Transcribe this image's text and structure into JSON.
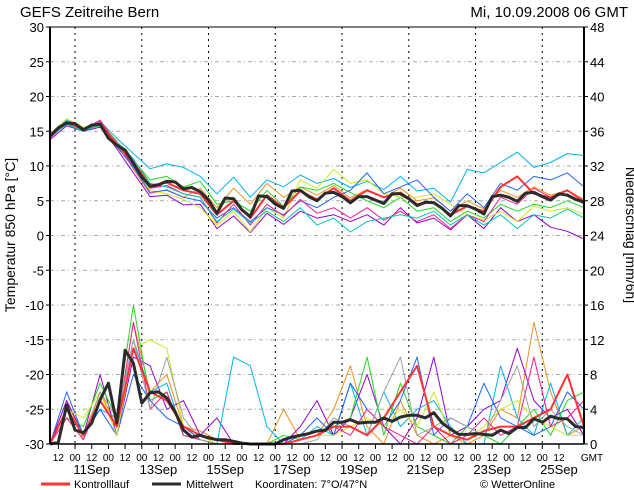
{
  "header": {
    "title": "GEFS Zeitreihe Bern",
    "run": "Mi, 10.09.2008 06 GMT"
  },
  "legend": {
    "control": "Kontrolllauf",
    "mean": "Mittelwert",
    "coords": "Koordinaten: 7°O/47°N",
    "credit": "© WetterOnline"
  },
  "colors": {
    "control": "#ff3333",
    "mean": "#2b2b2b",
    "members": [
      "#00b4f0",
      "#9400d3",
      "#f0901e",
      "#1edc1e",
      "#d2e61e",
      "#1e64ff",
      "#f01e8c",
      "#00c8b4"
    ],
    "precip_members": [
      "#f0901e",
      "#9400d3",
      "#00b4f0",
      "#1edc1e",
      "#1e64ff",
      "#d2e61e",
      "#f01e8c",
      "#a0a0a0"
    ]
  },
  "chart_data": {
    "type": "line",
    "title": "GEFS Zeitreihe Bern",
    "start": "10.09.2008 06 GMT",
    "hours_span": 384,
    "x_tick_labels": [
      "12",
      "00",
      "12",
      "00",
      "12",
      "00",
      "12",
      "00",
      "12",
      "00",
      "12",
      "00",
      "12",
      "00",
      "12",
      "00",
      "12",
      "00",
      "12",
      "00",
      "12",
      "00",
      "12",
      "00",
      "12",
      "00",
      "12",
      "00",
      "12",
      "00",
      "12"
    ],
    "x_unit_label": "GMT",
    "date_labels": [
      "11Sep",
      "13Sep",
      "15Sep",
      "17Sep",
      "19Sep",
      "21Sep",
      "23Sep",
      "25Sep"
    ],
    "left_axis": {
      "label": "Temperatur 850 hPa [°C]",
      "range": [
        -30,
        30
      ],
      "ticks": [
        "-30",
        "-25",
        "-20",
        "-15",
        "-10",
        "-5",
        "0",
        "5",
        "10",
        "15",
        "20",
        "25",
        "30"
      ]
    },
    "right_axis": {
      "label": "Niederschlag [mm/6h]",
      "range": [
        0,
        48
      ],
      "ticks": [
        "0",
        "4",
        "8",
        "12",
        "16",
        "20",
        "24",
        "28",
        "32",
        "36",
        "40",
        "44",
        "48"
      ]
    },
    "grid": true,
    "temperature": {
      "mean": {
        "step_hours": 6,
        "values": [
          14.3,
          15.5,
          16.2,
          16.1,
          15.2,
          15.9,
          16.0,
          14.0,
          13.0,
          12.3,
          10.4,
          8.4,
          7.1,
          7.3,
          7.8,
          7.7,
          6.7,
          6.9,
          6.3,
          5.1,
          3.2,
          5.4,
          5.3,
          3.7,
          2.7,
          5.7,
          5.6,
          4.5,
          3.9,
          6.4,
          6.5,
          5.6,
          5.0,
          6.1,
          6.2,
          5.6,
          4.7,
          5.6,
          5.6,
          5.1,
          4.6,
          6.0,
          6.0,
          5.3,
          4.3,
          4.8,
          4.7,
          3.9,
          2.8,
          4.3,
          4.3,
          3.8,
          3.1,
          5.6,
          5.8,
          5.5,
          4.9,
          6.1,
          6.2,
          5.6,
          5.1,
          6.0,
          5.8,
          5.2,
          4.8
        ]
      },
      "control": {
        "step_hours": 12,
        "values": [
          14.4,
          16.3,
          15.3,
          16.2,
          13.1,
          10.5,
          7.2,
          7.6,
          6.5,
          6.0,
          3.0,
          5.0,
          2.5,
          5.8,
          4.0,
          6.4,
          5.2,
          6.8,
          5.0,
          6.5,
          5.5,
          6.2,
          4.5,
          4.8,
          3.0,
          4.2,
          3.5,
          7.0,
          8.5,
          6.0,
          5.5,
          6.5,
          4.9
        ]
      },
      "members": [
        {
          "step_hours": 12,
          "values": [
            14.5,
            16.6,
            15.5,
            16.4,
            14.0,
            11.8,
            9.6,
            10.3,
            9.8,
            8.5,
            6.0,
            8.4,
            5.5,
            8.0,
            7.0,
            8.7,
            7.5,
            8.2,
            6.9,
            7.8,
            6.6,
            8.5,
            6.4,
            6.8,
            4.8,
            9.5,
            9.0,
            10.5,
            12.0,
            9.8,
            10.5,
            11.8,
            11.5
          ]
        },
        {
          "step_hours": 12,
          "values": [
            13.8,
            15.8,
            15.0,
            15.6,
            12.5,
            9.0,
            5.6,
            5.8,
            4.4,
            4.5,
            1.0,
            2.8,
            0.4,
            3.2,
            1.6,
            3.5,
            2.5,
            3.0,
            2.0,
            3.0,
            1.5,
            4.0,
            1.8,
            2.5,
            0.8,
            3.0,
            1.0,
            4.0,
            2.0,
            3.0,
            1.2,
            0.6,
            -0.5
          ]
        },
        {
          "step_hours": 12,
          "values": [
            14.0,
            16.3,
            15.4,
            16.2,
            13.6,
            9.5,
            6.0,
            6.6,
            5.5,
            6.8,
            4.0,
            6.8,
            4.5,
            7.5,
            5.5,
            7.0,
            5.8,
            7.2,
            5.4,
            6.6,
            5.5,
            6.8,
            5.0,
            5.4,
            3.5,
            5.0,
            3.8,
            6.5,
            5.5,
            7.0,
            5.8,
            6.5,
            5.2
          ]
        },
        {
          "step_hours": 12,
          "values": [
            14.2,
            16.0,
            15.1,
            15.8,
            12.7,
            10.8,
            8.0,
            8.5,
            7.0,
            7.8,
            4.5,
            5.0,
            3.5,
            6.5,
            4.2,
            7.0,
            6.5,
            7.5,
            6.2,
            5.0,
            4.0,
            5.5,
            3.5,
            4.0,
            2.0,
            3.5,
            2.5,
            4.5,
            3.5,
            4.5,
            4.0,
            5.0,
            4.0
          ]
        },
        {
          "step_hours": 12,
          "values": [
            14.6,
            16.8,
            15.6,
            16.1,
            13.4,
            10.2,
            6.5,
            6.0,
            5.2,
            4.0,
            1.5,
            3.5,
            0.5,
            4.0,
            2.5,
            8.0,
            6.8,
            9.5,
            7.5,
            8.0,
            6.0,
            5.5,
            5.5,
            6.0,
            4.5,
            3.0,
            2.2,
            3.5,
            2.0,
            4.2,
            3.5,
            4.0,
            3.0
          ]
        },
        {
          "step_hours": 12,
          "values": [
            14.1,
            16.1,
            15.3,
            15.9,
            12.8,
            9.8,
            6.2,
            6.5,
            5.5,
            5.0,
            2.5,
            4.0,
            2.0,
            4.0,
            3.0,
            5.0,
            4.0,
            5.5,
            6.5,
            9.0,
            6.0,
            7.0,
            8.0,
            5.5,
            3.5,
            6.0,
            4.0,
            7.5,
            6.5,
            8.5,
            8.0,
            9.0,
            7.0
          ]
        },
        {
          "step_hours": 12,
          "values": [
            14.0,
            16.4,
            15.2,
            16.6,
            13.2,
            10.0,
            6.8,
            7.2,
            6.0,
            5.5,
            1.8,
            4.5,
            1.5,
            4.5,
            2.8,
            5.2,
            3.2,
            4.0,
            2.5,
            4.0,
            2.2,
            3.5,
            2.0,
            3.0,
            1.0,
            3.0,
            2.0,
            5.5,
            4.5,
            6.8,
            5.5,
            6.0,
            4.5
          ]
        },
        {
          "step_hours": 12,
          "values": [
            14.3,
            16.0,
            15.0,
            16.0,
            13.5,
            11.0,
            7.5,
            7.0,
            6.0,
            5.5,
            2.0,
            3.8,
            1.8,
            3.5,
            2.0,
            4.0,
            1.5,
            2.5,
            0.5,
            2.0,
            2.5,
            3.0,
            2.5,
            3.5,
            1.5,
            3.0,
            1.5,
            3.0,
            1.0,
            3.0,
            2.5,
            3.8,
            2.5
          ]
        }
      ]
    },
    "precipitation": {
      "mean": {
        "step_hours": 6,
        "values": [
          0,
          0.2,
          4.5,
          1.6,
          1.3,
          2.4,
          5.1,
          7.0,
          2.4,
          10.8,
          9.3,
          4.7,
          5.9,
          6.0,
          5.3,
          3.7,
          1.6,
          0.8,
          1.0,
          0.7,
          0.5,
          0.5,
          0.3,
          0.1,
          0,
          0,
          0,
          0,
          0.5,
          0.8,
          1.0,
          1.2,
          1.5,
          1.6,
          2.5,
          2.5,
          2.8,
          2.4,
          2.5,
          2.5,
          3.0,
          2.6,
          3.1,
          3.3,
          3.3,
          3.0,
          3.6,
          2.4,
          1.7,
          1.1,
          1.1,
          1.2,
          1.1,
          1.0,
          1.6,
          1.2,
          1.9,
          1.9,
          2.9,
          2.5,
          3.2,
          2.9,
          2.9,
          2.0,
          1.9
        ]
      },
      "control": {
        "step_hours": 12,
        "values": [
          0,
          4,
          1,
          5,
          2,
          11,
          6,
          5,
          2,
          1,
          0.5,
          0,
          0,
          0,
          0,
          0.5,
          1,
          2,
          2,
          1,
          3,
          6,
          9,
          2,
          1,
          0.5,
          1.5,
          2,
          2,
          3,
          4,
          8,
          2
        ]
      },
      "members": [
        {
          "step_hours": 12,
          "values": [
            0,
            5,
            0.5,
            6,
            2,
            14,
            6,
            8,
            2,
            1.5,
            0.5,
            0,
            0,
            0,
            4,
            0.5,
            1,
            4,
            9,
            2,
            0,
            5,
            1,
            0,
            1,
            0,
            1,
            4,
            3,
            14,
            6,
            1,
            2
          ]
        },
        {
          "step_hours": 12,
          "values": [
            0,
            5,
            1,
            8,
            1,
            10,
            9,
            4,
            5,
            1,
            3,
            0,
            0,
            0,
            0,
            2,
            5,
            1,
            3,
            8,
            2,
            0,
            3,
            10,
            1,
            2,
            4,
            5,
            11,
            5,
            3,
            4,
            1
          ]
        },
        {
          "step_hours": 12,
          "values": [
            0,
            4,
            1,
            4,
            3,
            12,
            6,
            7,
            1,
            0.5,
            0,
            10,
            9,
            2,
            0,
            0.5,
            2,
            1,
            7,
            1,
            6,
            2,
            4,
            5,
            2,
            0,
            0,
            9,
            3,
            1,
            7,
            1,
            3
          ]
        },
        {
          "step_hours": 12,
          "values": [
            0,
            3,
            2,
            7,
            3,
            16,
            5,
            6,
            1,
            0.5,
            0,
            0,
            0,
            0,
            1,
            0.5,
            1,
            2,
            3,
            10,
            1,
            7,
            2,
            1,
            0,
            2,
            1,
            0,
            2,
            4,
            1,
            5,
            6
          ]
        },
        {
          "step_hours": 12,
          "values": [
            0,
            6,
            1,
            4,
            1,
            8,
            5,
            3,
            2,
            0.5,
            0,
            0,
            0,
            0,
            0,
            1,
            3,
            1,
            7,
            4,
            2,
            5,
            10,
            1,
            3,
            2,
            7,
            3,
            2,
            1,
            2,
            6,
            4
          ]
        },
        {
          "step_hours": 12,
          "values": [
            0,
            4,
            3,
            6,
            1,
            11,
            12,
            11,
            2,
            1,
            0,
            0,
            0,
            0,
            0,
            0.5,
            1,
            1,
            2,
            3,
            2,
            4,
            2,
            6,
            1,
            0.5,
            2,
            4,
            5,
            3,
            2,
            1,
            1
          ]
        },
        {
          "step_hours": 12,
          "values": [
            0,
            3,
            0.5,
            5,
            2,
            14,
            4,
            6,
            1,
            0.5,
            0,
            0,
            0,
            0,
            0,
            0.5,
            1,
            2,
            1,
            4,
            2,
            1,
            0,
            2,
            0,
            1,
            3,
            1,
            2,
            10,
            2,
            3,
            5
          ]
        },
        {
          "step_hours": 12,
          "values": [
            0,
            4,
            1,
            6,
            3,
            12,
            4,
            10,
            3,
            0.5,
            0,
            0,
            0,
            0,
            0,
            0,
            0.5,
            3,
            2,
            1,
            6,
            10,
            1,
            2,
            3,
            2,
            1,
            5,
            9,
            2,
            4,
            2,
            1
          ]
        }
      ]
    }
  }
}
